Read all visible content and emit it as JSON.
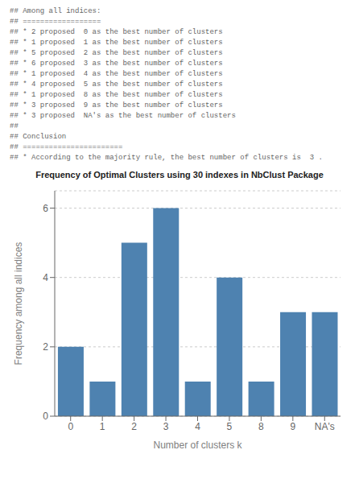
{
  "chart_data": {
    "type": "bar",
    "title": "Frequency of Optimal Clusters using 30 indexes in NbClust Package",
    "annotations": [
      "## Among all indices:",
      "## ==================",
      "## * 2 proposed  0 as the best number of clusters",
      "## * 1 proposed  1 as the best number of clusters",
      "## * 5 proposed  2 as the best number of clusters",
      "## * 6 proposed  3 as the best number of clusters",
      "## * 1 proposed  4 as the best number of clusters",
      "## * 4 proposed  5 as the best number of clusters",
      "## * 1 proposed  8 as the best number of clusters",
      "## * 3 proposed  9 as the best number of clusters",
      "## * 3 proposed  NA's as the best number of clusters",
      "##",
      "## Conclusion",
      "## =======================",
      "## * According to the majority rule, the best number of clusters is  3 ."
    ],
    "categories": [
      "0",
      "1",
      "2",
      "3",
      "4",
      "5",
      "8",
      "9",
      "NA's"
    ],
    "values": [
      2,
      1,
      5,
      6,
      1,
      4,
      1,
      3,
      3
    ],
    "color": "#4e82b0",
    "xlabel": "Number of clusters k",
    "ylabel": "Frequency among all indices",
    "ylim": [
      0,
      6.5
    ],
    "yticks": [
      0,
      2,
      4,
      6
    ],
    "grid": true
  }
}
